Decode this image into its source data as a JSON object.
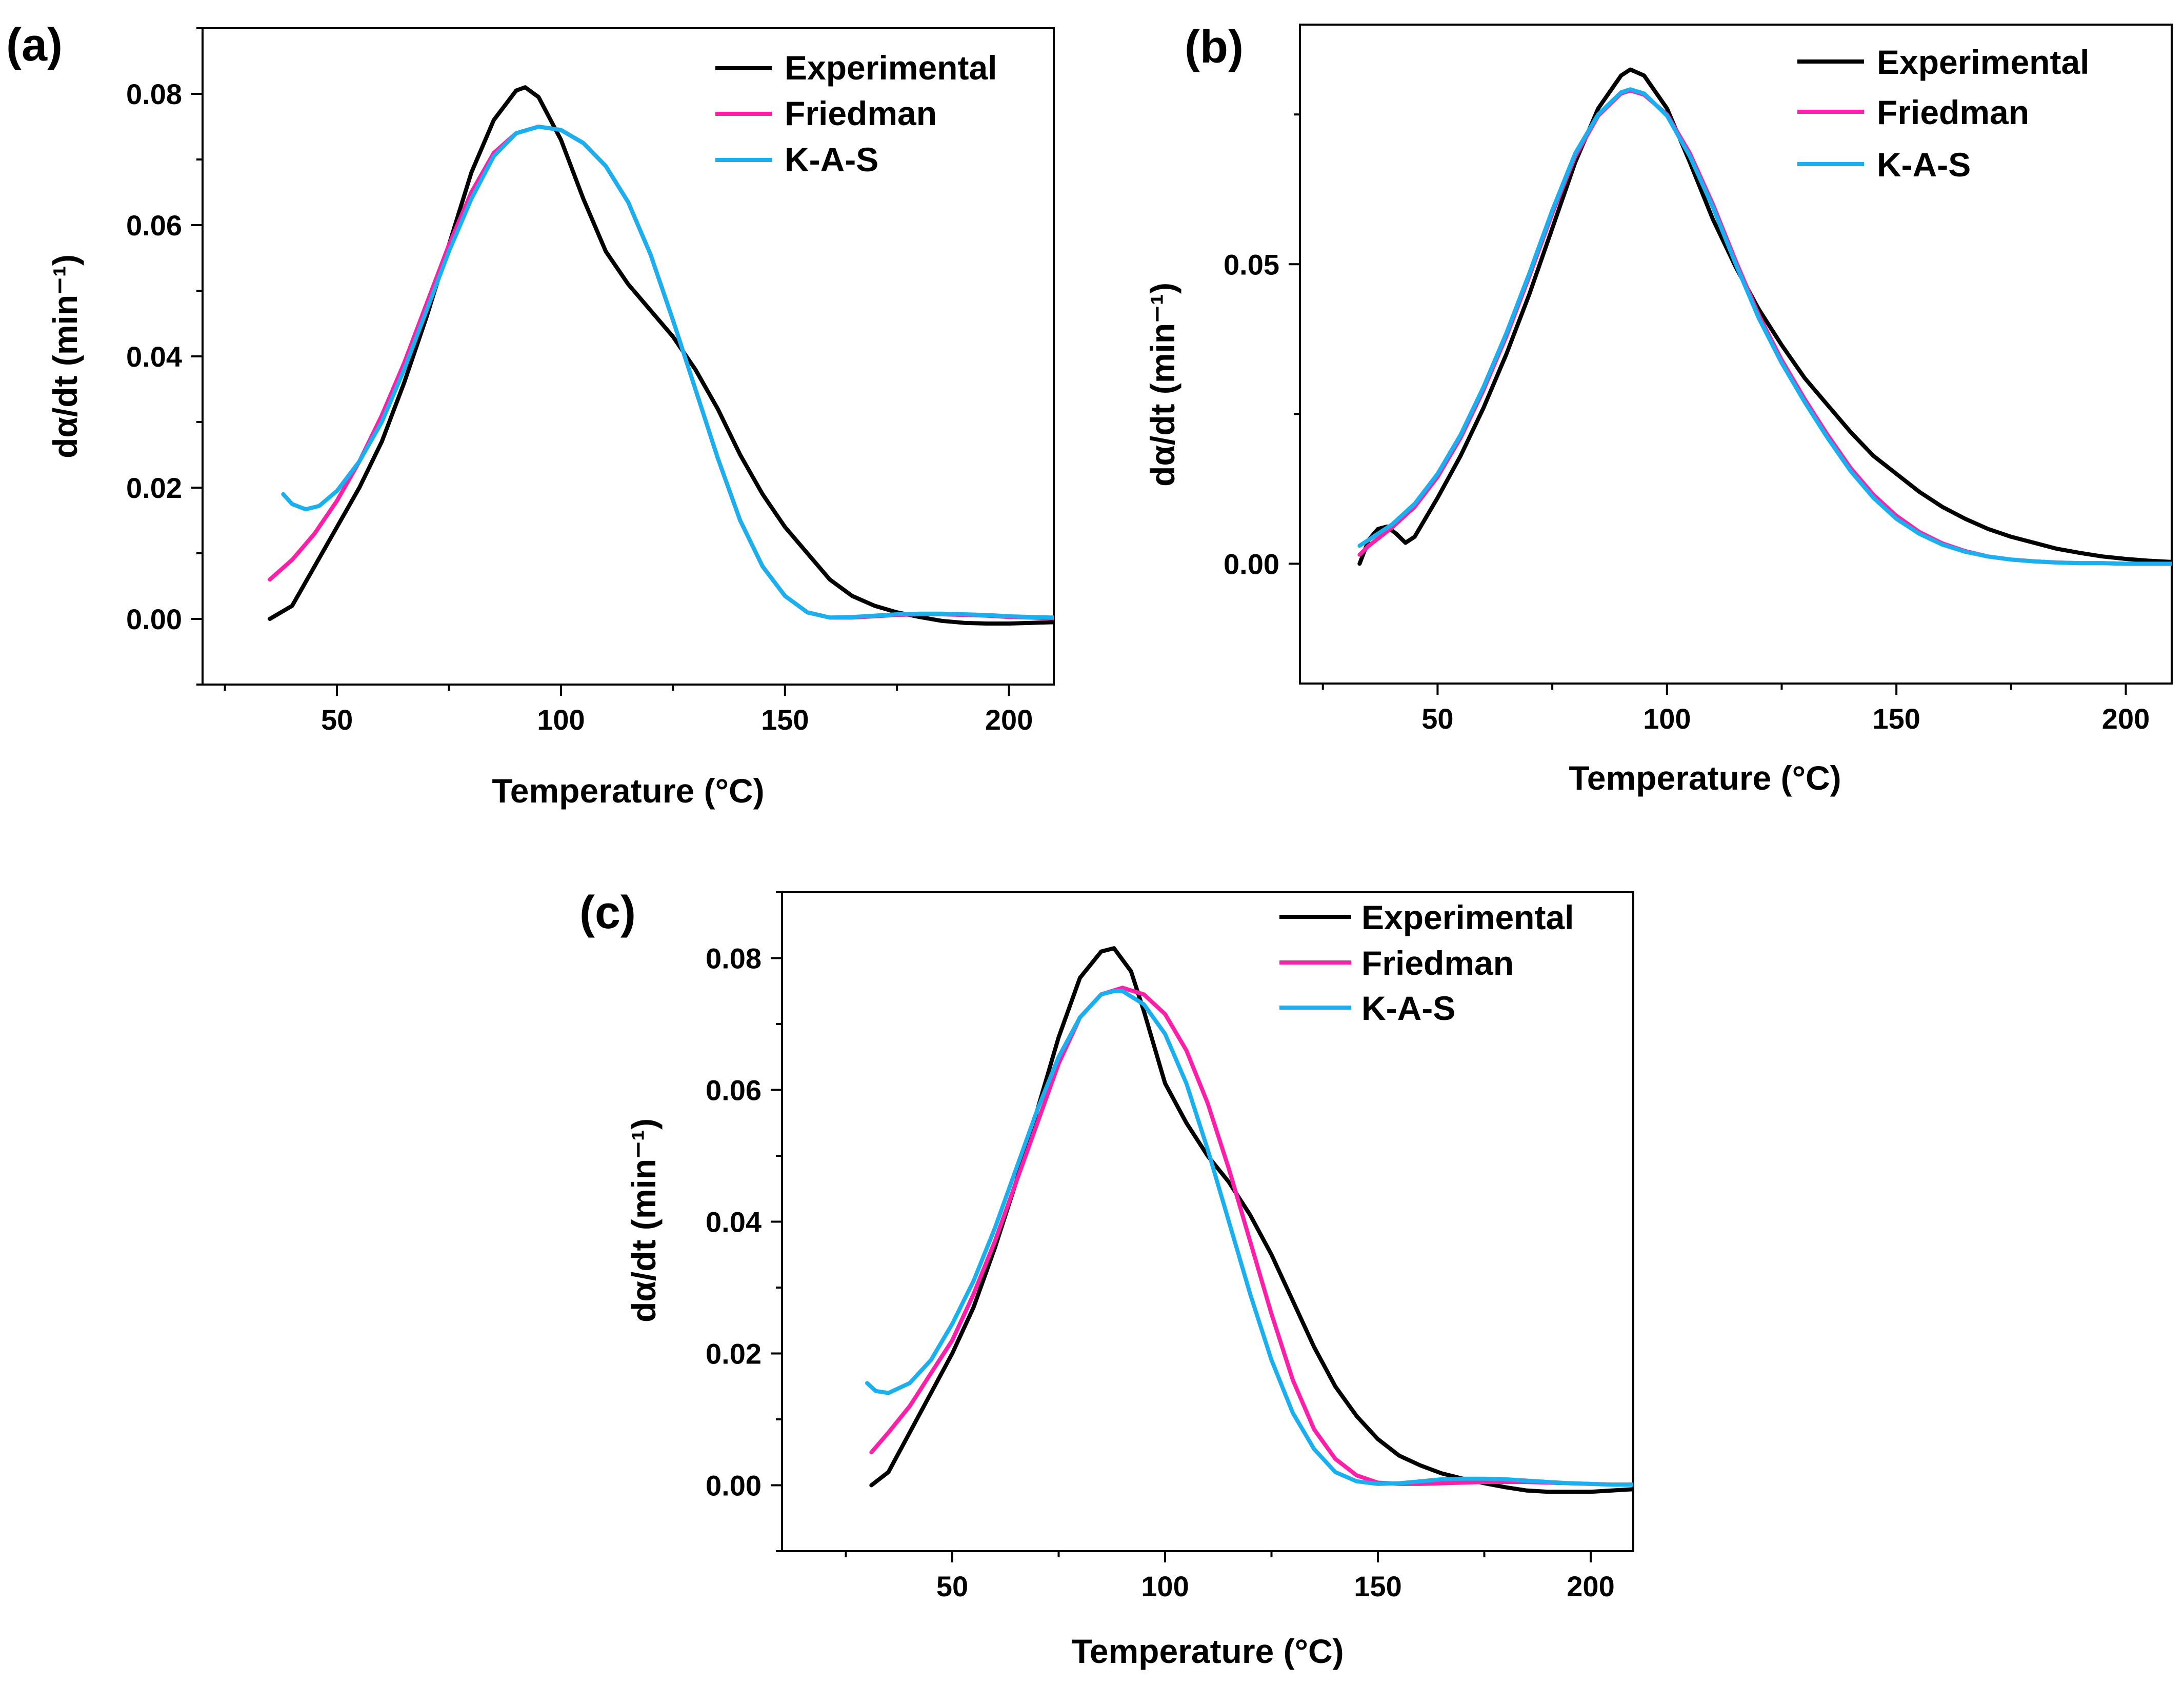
{
  "chart_data": [
    {
      "panel": "(a)",
      "type": "line",
      "xlabel": "Temperature (°C)",
      "ylabel": "dα/dt (min⁻¹)",
      "xlim": [
        20,
        210
      ],
      "ylim": [
        -0.01,
        0.09
      ],
      "xticks": [
        50,
        100,
        150,
        200
      ],
      "xtick_labels": [
        "50",
        "100",
        "150",
        "200"
      ],
      "yticks": [
        0,
        0.02,
        0.04,
        0.06,
        0.08
      ],
      "ytick_labels": [
        "0.00",
        "0.02",
        "0.04",
        "0.06",
        "0.08"
      ],
      "legend": [
        "Experimental",
        "Friedman",
        "K-A-S"
      ],
      "legend_position": "top-right",
      "series": [
        {
          "name": "Experimental",
          "color": "#000000",
          "x": [
            35,
            40,
            45,
            50,
            55,
            60,
            65,
            70,
            75,
            80,
            85,
            90,
            92,
            95,
            100,
            105,
            110,
            115,
            120,
            125,
            130,
            135,
            140,
            145,
            150,
            155,
            160,
            165,
            170,
            175,
            180,
            185,
            190,
            195,
            200,
            205,
            210
          ],
          "y": [
            0.0,
            0.002,
            0.008,
            0.014,
            0.02,
            0.027,
            0.036,
            0.046,
            0.057,
            0.068,
            0.076,
            0.0805,
            0.081,
            0.0795,
            0.073,
            0.064,
            0.056,
            0.051,
            0.047,
            0.043,
            0.038,
            0.032,
            0.025,
            0.019,
            0.014,
            0.01,
            0.006,
            0.0035,
            0.002,
            0.001,
            0.0003,
            -0.0003,
            -0.0006,
            -0.0007,
            -0.0007,
            -0.0006,
            -0.0005
          ]
        },
        {
          "name": "Friedman",
          "color": "#ff1fa8",
          "x": [
            35,
            40,
            45,
            50,
            55,
            60,
            65,
            70,
            75,
            80,
            85,
            90,
            95,
            100,
            105,
            110,
            115,
            120,
            125,
            130,
            135,
            140,
            145,
            150,
            155,
            160,
            165,
            170,
            175,
            180,
            185,
            190,
            195,
            200,
            205,
            210
          ],
          "y": [
            0.006,
            0.009,
            0.013,
            0.018,
            0.024,
            0.031,
            0.039,
            0.048,
            0.057,
            0.065,
            0.071,
            0.074,
            0.075,
            0.0745,
            0.0725,
            0.069,
            0.0635,
            0.0555,
            0.0455,
            0.035,
            0.0245,
            0.015,
            0.008,
            0.0035,
            0.001,
            0.0002,
            0.0002,
            0.0004,
            0.0006,
            0.0007,
            0.0007,
            0.0006,
            0.0005,
            0.0003,
            0.0002,
            0.0001
          ]
        },
        {
          "name": "K-A-S",
          "color": "#1ab0f0",
          "x": [
            38,
            40,
            43,
            46,
            50,
            55,
            60,
            65,
            70,
            75,
            80,
            85,
            90,
            95,
            100,
            105,
            110,
            115,
            120,
            125,
            130,
            135,
            140,
            145,
            150,
            155,
            160,
            165,
            170,
            175,
            180,
            185,
            190,
            195,
            200,
            205,
            210
          ],
          "y": [
            0.019,
            0.0175,
            0.0167,
            0.0172,
            0.0195,
            0.024,
            0.03,
            0.038,
            0.047,
            0.056,
            0.064,
            0.0705,
            0.074,
            0.075,
            0.0745,
            0.0725,
            0.069,
            0.0635,
            0.0555,
            0.0455,
            0.035,
            0.0245,
            0.015,
            0.008,
            0.0035,
            0.001,
            0.0002,
            0.0003,
            0.0005,
            0.0007,
            0.0008,
            0.0008,
            0.0007,
            0.0006,
            0.0004,
            0.0003,
            0.0002
          ]
        }
      ]
    },
    {
      "panel": "(b)",
      "type": "line",
      "xlabel": "Temperature (°C)",
      "ylabel": "dα/dt (min⁻¹)",
      "xlim": [
        20,
        210
      ],
      "ylim": [
        -0.02,
        0.09
      ],
      "xticks": [
        50,
        100,
        150,
        200
      ],
      "xtick_labels": [
        "50",
        "100",
        "150",
        "200"
      ],
      "yticks": [
        0,
        0.05
      ],
      "ytick_labels": [
        "0.00",
        "0.05"
      ],
      "legend": [
        "Experimental",
        "Friedman",
        "K-A-S"
      ],
      "legend_position": "top-right",
      "series": [
        {
          "name": "Experimental",
          "color": "#000000",
          "x": [
            33,
            35,
            37,
            39,
            41,
            43,
            45,
            50,
            55,
            60,
            65,
            70,
            75,
            80,
            85,
            90,
            92,
            95,
            100,
            105,
            110,
            115,
            120,
            125,
            130,
            135,
            140,
            145,
            150,
            155,
            160,
            165,
            170,
            175,
            180,
            185,
            190,
            195,
            200,
            205,
            210
          ],
          "y": [
            0.0,
            0.004,
            0.0058,
            0.0062,
            0.005,
            0.0035,
            0.0045,
            0.011,
            0.018,
            0.026,
            0.035,
            0.045,
            0.056,
            0.067,
            0.076,
            0.0815,
            0.0825,
            0.0815,
            0.076,
            0.067,
            0.0575,
            0.0495,
            0.0425,
            0.0365,
            0.031,
            0.0265,
            0.022,
            0.018,
            0.015,
            0.012,
            0.0095,
            0.0075,
            0.0058,
            0.0045,
            0.0035,
            0.0025,
            0.0018,
            0.0012,
            0.0008,
            0.0005,
            0.0003
          ]
        },
        {
          "name": "Friedman",
          "color": "#ff1fa8",
          "x": [
            33,
            35,
            40,
            45,
            50,
            55,
            60,
            65,
            70,
            75,
            80,
            85,
            90,
            92,
            95,
            100,
            105,
            110,
            115,
            120,
            125,
            130,
            135,
            140,
            145,
            150,
            155,
            160,
            165,
            170,
            175,
            180,
            185,
            190,
            195,
            200,
            205,
            210
          ],
          "y": [
            0.0015,
            0.003,
            0.006,
            0.0095,
            0.0145,
            0.021,
            0.029,
            0.038,
            0.048,
            0.0585,
            0.068,
            0.0748,
            0.0785,
            0.079,
            0.0783,
            0.075,
            0.0685,
            0.06,
            0.0505,
            0.0415,
            0.034,
            0.0275,
            0.0215,
            0.016,
            0.0115,
            0.008,
            0.0053,
            0.0034,
            0.0021,
            0.0012,
            0.0007,
            0.0004,
            0.0002,
            0.0001,
            0.0001,
            0.0,
            0.0,
            0.0
          ]
        },
        {
          "name": "K-A-S",
          "color": "#1ab0f0",
          "x": [
            33,
            35,
            40,
            45,
            50,
            55,
            60,
            65,
            70,
            75,
            80,
            85,
            90,
            92,
            95,
            100,
            105,
            110,
            115,
            120,
            125,
            130,
            135,
            140,
            145,
            150,
            155,
            160,
            165,
            170,
            175,
            180,
            185,
            190,
            195,
            200,
            205,
            210
          ],
          "y": [
            0.003,
            0.004,
            0.0065,
            0.01,
            0.015,
            0.0215,
            0.0295,
            0.0385,
            0.0485,
            0.059,
            0.0685,
            0.075,
            0.0787,
            0.0792,
            0.0785,
            0.0748,
            0.068,
            0.0595,
            0.05,
            0.041,
            0.0335,
            0.027,
            0.021,
            0.0155,
            0.011,
            0.0075,
            0.005,
            0.0032,
            0.002,
            0.0012,
            0.0007,
            0.0004,
            0.0002,
            0.0001,
            0.0001,
            0.0,
            0.0,
            0.0
          ]
        }
      ]
    },
    {
      "panel": "(c)",
      "type": "line",
      "xlabel": "Temperature (°C)",
      "ylabel": "dα/dt (min⁻¹)",
      "xlim": [
        10,
        210
      ],
      "ylim": [
        -0.01,
        0.09
      ],
      "xticks": [
        50,
        100,
        150,
        200
      ],
      "xtick_labels": [
        "50",
        "100",
        "150",
        "200"
      ],
      "yticks": [
        0,
        0.02,
        0.04,
        0.06,
        0.08
      ],
      "ytick_labels": [
        "0.00",
        "0.02",
        "0.04",
        "0.06",
        "0.08"
      ],
      "legend": [
        "Experimental",
        "Friedman",
        "K-A-S"
      ],
      "legend_position": "top-right",
      "series": [
        {
          "name": "Experimental",
          "color": "#000000",
          "x": [
            31,
            35,
            40,
            45,
            50,
            55,
            60,
            65,
            70,
            75,
            80,
            85,
            88,
            92,
            95,
            100,
            105,
            110,
            115,
            120,
            125,
            130,
            135,
            140,
            145,
            150,
            155,
            160,
            165,
            170,
            175,
            180,
            185,
            190,
            195,
            200,
            205,
            210
          ],
          "y": [
            0.0,
            0.002,
            0.008,
            0.014,
            0.02,
            0.027,
            0.036,
            0.046,
            0.057,
            0.068,
            0.077,
            0.081,
            0.0815,
            0.078,
            0.072,
            0.061,
            0.055,
            0.05,
            0.046,
            0.041,
            0.035,
            0.028,
            0.021,
            0.015,
            0.0105,
            0.007,
            0.0045,
            0.003,
            0.0018,
            0.001,
            0.0003,
            -0.0003,
            -0.0008,
            -0.001,
            -0.001,
            -0.001,
            -0.0008,
            -0.0006
          ]
        },
        {
          "name": "Friedman",
          "color": "#ff1fa8",
          "x": [
            31,
            35,
            40,
            45,
            50,
            55,
            60,
            65,
            70,
            75,
            80,
            85,
            90,
            95,
            100,
            105,
            110,
            115,
            120,
            125,
            130,
            135,
            140,
            145,
            150,
            155,
            160,
            165,
            170,
            175,
            180,
            185,
            190,
            195,
            200,
            205,
            210
          ],
          "y": [
            0.005,
            0.008,
            0.012,
            0.017,
            0.022,
            0.029,
            0.037,
            0.046,
            0.055,
            0.064,
            0.071,
            0.0745,
            0.0755,
            0.0745,
            0.0715,
            0.066,
            0.058,
            0.048,
            0.037,
            0.026,
            0.016,
            0.0085,
            0.004,
            0.0015,
            0.0004,
            0.0002,
            0.0002,
            0.0003,
            0.0004,
            0.0005,
            0.0005,
            0.0005,
            0.0004,
            0.0003,
            0.0002,
            0.0001,
            0.0001
          ]
        },
        {
          "name": "K-A-S",
          "color": "#1ab0f0",
          "x": [
            30,
            32,
            35,
            40,
            45,
            50,
            55,
            60,
            65,
            70,
            75,
            80,
            85,
            88,
            90,
            95,
            100,
            105,
            110,
            115,
            120,
            125,
            130,
            135,
            140,
            145,
            150,
            155,
            160,
            165,
            170,
            175,
            180,
            185,
            190,
            195,
            200,
            205,
            210
          ],
          "y": [
            0.0155,
            0.0143,
            0.014,
            0.0155,
            0.019,
            0.0245,
            0.031,
            0.039,
            0.048,
            0.057,
            0.065,
            0.071,
            0.0745,
            0.075,
            0.075,
            0.073,
            0.0685,
            0.061,
            0.051,
            0.04,
            0.029,
            0.019,
            0.011,
            0.0055,
            0.002,
            0.0006,
            0.0002,
            0.0003,
            0.0006,
            0.0009,
            0.001,
            0.001,
            0.0009,
            0.0007,
            0.0005,
            0.0003,
            0.0002,
            0.0001,
            0.0001
          ]
        }
      ]
    }
  ]
}
